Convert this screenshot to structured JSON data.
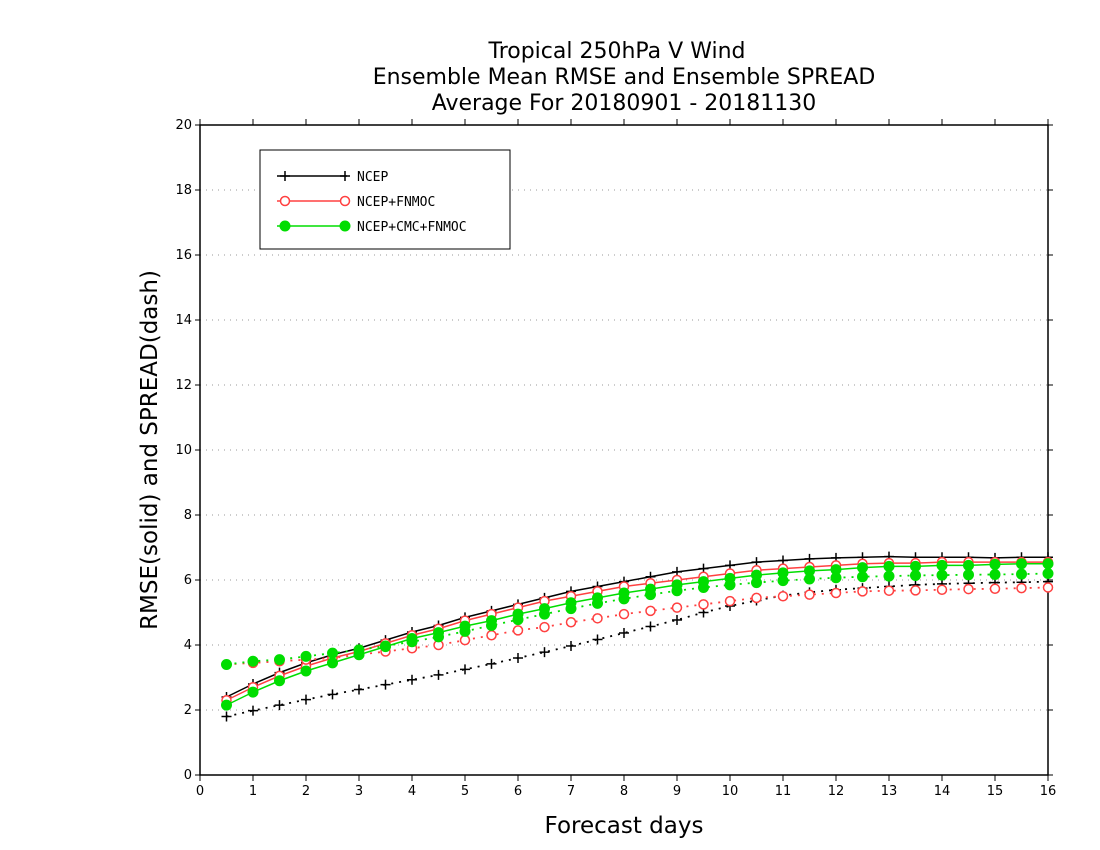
{
  "chart_data": {
    "type": "line",
    "title_lines": [
      "Tropical 250hPa V Wind",
      "Ensemble Mean RMSE and Ensemble SPREAD",
      "Average For 20180901 - 20181130"
    ],
    "xlabel": "Forecast days",
    "ylabel": "RMSE(solid) and SPREAD(dash)",
    "xlim": [
      0,
      16
    ],
    "ylim": [
      0,
      20
    ],
    "xticks": [
      0,
      1,
      2,
      3,
      4,
      5,
      6,
      7,
      8,
      9,
      10,
      11,
      12,
      13,
      14,
      15,
      16
    ],
    "yticks": [
      0,
      2,
      4,
      6,
      8,
      10,
      12,
      14,
      16,
      18,
      20
    ],
    "grid": "horizontal dotted",
    "legend_position": "top-left",
    "x": [
      0.5,
      1.0,
      1.5,
      2.0,
      2.5,
      3.0,
      3.5,
      4.0,
      4.5,
      5.0,
      5.5,
      6.0,
      6.5,
      7.0,
      7.5,
      8.0,
      8.5,
      9.0,
      9.5,
      10.0,
      10.5,
      11.0,
      11.5,
      12.0,
      12.5,
      13.0,
      13.5,
      14.0,
      14.5,
      15.0,
      15.5,
      16.0
    ],
    "series": [
      {
        "name": "NCEP",
        "color": "#000000",
        "marker": "plus",
        "rmse": [
          2.4,
          2.8,
          3.15,
          3.45,
          3.7,
          3.9,
          4.15,
          4.4,
          4.6,
          4.85,
          5.05,
          5.25,
          5.45,
          5.65,
          5.8,
          5.95,
          6.1,
          6.25,
          6.35,
          6.45,
          6.55,
          6.6,
          6.65,
          6.68,
          6.7,
          6.72,
          6.7,
          6.7,
          6.7,
          6.68,
          6.7,
          6.7
        ],
        "spread": [
          1.8,
          1.98,
          2.15,
          2.32,
          2.48,
          2.63,
          2.78,
          2.93,
          3.08,
          3.25,
          3.42,
          3.6,
          3.78,
          3.97,
          4.17,
          4.37,
          4.57,
          4.77,
          5.0,
          5.2,
          5.37,
          5.52,
          5.62,
          5.7,
          5.75,
          5.8,
          5.85,
          5.88,
          5.9,
          5.92,
          5.93,
          5.95
        ]
      },
      {
        "name": "NCEP+FNMOC",
        "color": "#ff4040",
        "marker": "open-circle",
        "rmse": [
          2.3,
          2.7,
          3.05,
          3.35,
          3.6,
          3.8,
          4.05,
          4.3,
          4.5,
          4.75,
          4.95,
          5.15,
          5.35,
          5.5,
          5.65,
          5.8,
          5.9,
          6.0,
          6.1,
          6.2,
          6.3,
          6.35,
          6.4,
          6.45,
          6.5,
          6.52,
          6.52,
          6.55,
          6.55,
          6.55,
          6.55,
          6.55
        ],
        "spread": [
          3.4,
          3.45,
          3.5,
          3.55,
          3.6,
          3.7,
          3.8,
          3.9,
          4.0,
          4.15,
          4.3,
          4.45,
          4.55,
          4.7,
          4.82,
          4.95,
          5.05,
          5.15,
          5.25,
          5.35,
          5.45,
          5.5,
          5.55,
          5.6,
          5.65,
          5.67,
          5.68,
          5.7,
          5.72,
          5.73,
          5.75,
          5.77
        ]
      },
      {
        "name": "NCEP+CMC+FNMOC",
        "color": "#00dd00",
        "marker": "filled-circle",
        "rmse": [
          2.15,
          2.55,
          2.9,
          3.2,
          3.45,
          3.7,
          3.95,
          4.2,
          4.38,
          4.58,
          4.75,
          4.95,
          5.12,
          5.3,
          5.45,
          5.6,
          5.72,
          5.85,
          5.95,
          6.05,
          6.15,
          6.22,
          6.28,
          6.32,
          6.38,
          6.42,
          6.42,
          6.45,
          6.45,
          6.48,
          6.5,
          6.5
        ],
        "spread": [
          3.4,
          3.5,
          3.55,
          3.65,
          3.75,
          3.85,
          3.97,
          4.1,
          4.25,
          4.42,
          4.6,
          4.78,
          4.95,
          5.12,
          5.28,
          5.42,
          5.55,
          5.67,
          5.77,
          5.85,
          5.92,
          5.98,
          6.03,
          6.07,
          6.1,
          6.12,
          6.14,
          6.15,
          6.16,
          6.17,
          6.18,
          6.2
        ]
      }
    ]
  }
}
